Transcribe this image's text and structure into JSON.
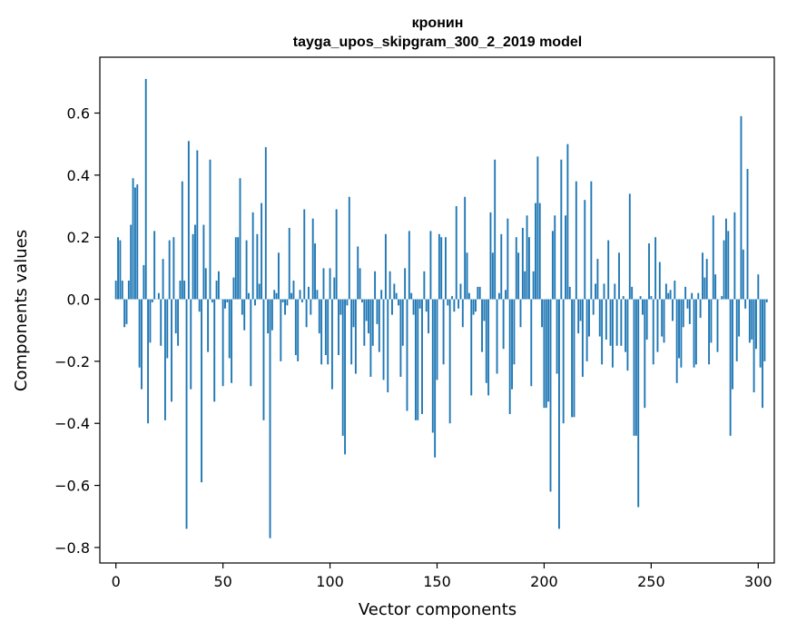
{
  "chart_data": {
    "type": "bar",
    "title": "кронин",
    "subtitle": "tayga_upos_skipgram_300_2_2019 model",
    "xlabel": "Vector components",
    "ylabel": "Components values",
    "xlim": [
      -7.5,
      307.5
    ],
    "ylim": [
      -0.85,
      0.78
    ],
    "xticks": [
      0,
      50,
      100,
      150,
      200,
      250,
      300
    ],
    "yticks": [
      -0.8,
      -0.6,
      -0.4,
      -0.2,
      0.0,
      0.2,
      0.4,
      0.6
    ],
    "ytick_labels": [
      "−0.8",
      "−0.6",
      "−0.4",
      "−0.2",
      "0.0",
      "0.2",
      "0.4",
      "0.6"
    ],
    "bar_color": "#1f77b4",
    "grid": false,
    "values": [
      0.06,
      0.2,
      0.19,
      0.06,
      -0.09,
      -0.08,
      0.06,
      0.24,
      0.39,
      0.36,
      0.37,
      -0.22,
      -0.29,
      0.11,
      0.71,
      -0.4,
      -0.14,
      -0.01,
      0.22,
      0.0,
      0.02,
      -0.15,
      0.13,
      -0.39,
      -0.19,
      0.19,
      -0.33,
      0.2,
      -0.11,
      -0.15,
      0.06,
      0.38,
      0.06,
      -0.74,
      0.51,
      -0.29,
      0.21,
      0.24,
      0.48,
      -0.04,
      -0.59,
      0.24,
      0.1,
      -0.17,
      0.45,
      -0.01,
      -0.33,
      0.06,
      0.09,
      0.0,
      -0.28,
      -0.03,
      -0.01,
      -0.19,
      -0.27,
      0.07,
      0.2,
      0.2,
      0.39,
      -0.05,
      -0.1,
      0.19,
      0.02,
      -0.28,
      0.28,
      -0.02,
      0.21,
      0.05,
      0.31,
      -0.39,
      0.49,
      -0.11,
      -0.77,
      -0.1,
      0.03,
      0.02,
      0.15,
      -0.2,
      -0.01,
      -0.05,
      -0.02,
      0.23,
      0.02,
      0.06,
      -0.18,
      -0.2,
      0.03,
      -0.01,
      0.29,
      -0.09,
      0.04,
      -0.05,
      0.26,
      0.18,
      0.03,
      -0.11,
      -0.21,
      0.1,
      -0.18,
      -0.21,
      0.1,
      -0.29,
      0.07,
      0.29,
      -0.18,
      -0.05,
      -0.44,
      -0.5,
      -0.02,
      0.33,
      -0.21,
      -0.09,
      -0.24,
      0.17,
      0.1,
      -0.01,
      -0.15,
      -0.07,
      -0.11,
      -0.25,
      -0.15,
      0.09,
      -0.08,
      -0.17,
      0.03,
      -0.26,
      0.21,
      -0.3,
      0.09,
      -0.05,
      0.05,
      0.02,
      -0.02,
      -0.25,
      -0.15,
      0.1,
      -0.36,
      0.22,
      0.02,
      -0.05,
      -0.39,
      -0.39,
      -0.03,
      -0.37,
      0.09,
      -0.04,
      -0.11,
      0.22,
      -0.43,
      -0.51,
      -0.26,
      0.21,
      0.2,
      -0.21,
      0.2,
      -0.02,
      -0.4,
      0.01,
      -0.04,
      0.3,
      -0.03,
      0.05,
      -0.09,
      0.33,
      0.15,
      0.02,
      -0.31,
      -0.05,
      -0.04,
      0.04,
      0.04,
      -0.17,
      -0.07,
      -0.27,
      -0.31,
      0.28,
      0.15,
      0.45,
      -0.24,
      0.02,
      0.21,
      -0.16,
      0.03,
      0.26,
      -0.37,
      -0.29,
      -0.21,
      0.2,
      0.15,
      -0.09,
      0.23,
      0.09,
      0.27,
      0.2,
      -0.28,
      0.09,
      0.31,
      0.46,
      0.31,
      -0.09,
      -0.35,
      -0.35,
      -0.33,
      -0.62,
      0.22,
      0.27,
      -0.24,
      -0.74,
      0.45,
      -0.4,
      0.27,
      0.5,
      0.04,
      -0.38,
      -0.38,
      0.38,
      -0.11,
      -0.07,
      -0.25,
      0.32,
      -0.2,
      -0.12,
      0.38,
      -0.05,
      0.05,
      0.13,
      -0.12,
      -0.21,
      0.05,
      -0.13,
      0.19,
      -0.15,
      -0.22,
      0.05,
      -0.15,
      0.15,
      -0.15,
      0.01,
      -0.17,
      -0.23,
      0.34,
      0.04,
      -0.44,
      -0.44,
      -0.67,
      0.01,
      -0.05,
      -0.35,
      -0.13,
      0.18,
      0.01,
      -0.21,
      0.2,
      -0.17,
      0.12,
      -0.12,
      -0.14,
      0.05,
      0.02,
      0.03,
      -0.07,
      0.06,
      -0.27,
      -0.19,
      -0.22,
      -0.09,
      0.04,
      -0.03,
      -0.08,
      0.02,
      -0.22,
      -0.21,
      0.02,
      -0.06,
      0.15,
      0.07,
      0.13,
      -0.21,
      -0.14,
      0.27,
      0.08,
      -0.17,
      0.0,
      0.01,
      0.19,
      0.26,
      0.22,
      -0.44,
      -0.29,
      0.28,
      -0.2,
      -0.12,
      0.59,
      0.16,
      -0.03,
      0.42,
      -0.14,
      -0.13,
      -0.3,
      -0.16,
      0.08,
      -0.22,
      -0.35,
      -0.2,
      -0.01
    ]
  }
}
